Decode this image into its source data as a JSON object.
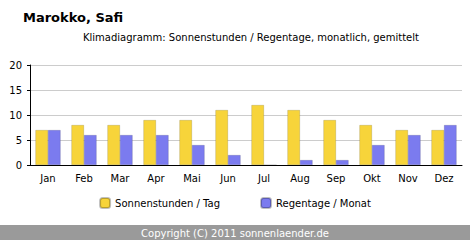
{
  "chart_data": {
    "type": "bar",
    "title": "Marokko, Safi",
    "subtitle": "Klimadiagramm: Sonnenstunden / Regentage, monatlich, gemittelt",
    "annotations": [
      "Copyright (C) 2011 sonnenlaender.de"
    ],
    "categories": [
      "Jan",
      "Feb",
      "Mar",
      "Apr",
      "Mai",
      "Jun",
      "Jul",
      "Aug",
      "Sep",
      "Okt",
      "Nov",
      "Dez"
    ],
    "series": [
      {
        "name": "Sonnenstunden / Tag",
        "color": "#f7d43a",
        "values": [
          7,
          8,
          8,
          9,
          9,
          11,
          12,
          11,
          9,
          8,
          7,
          7
        ]
      },
      {
        "name": "Regentage / Monat",
        "color": "#7b7bef",
        "values": [
          7,
          6,
          6,
          6,
          4,
          2,
          0,
          1,
          1,
          4,
          6,
          8
        ]
      }
    ],
    "ylim": [
      0,
      20
    ],
    "yticks": [
      0,
      5,
      10,
      15,
      20
    ],
    "grid": true,
    "legend": "bottom"
  }
}
